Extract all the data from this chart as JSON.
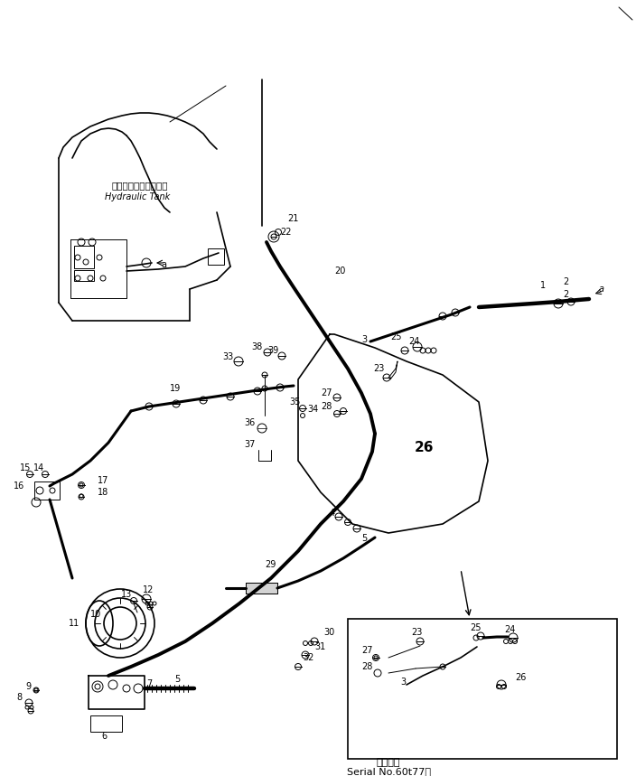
{
  "bg_color": "#ffffff",
  "line_color": "#000000",
  "title_jp": "適用号機",
  "title_en": "Serial No.60t77～",
  "hydraulic_tank_jp": "ハイドロリックタンク",
  "hydraulic_tank_en": "Hydraulic Tank",
  "figsize": [
    7.04,
    8.59
  ],
  "dpi": 100,
  "lw_thin": 0.7,
  "lw_med": 1.2,
  "lw_thick": 2.2,
  "lw_hose": 2.8,
  "fontsize_label": 7,
  "fontsize_big": 11
}
